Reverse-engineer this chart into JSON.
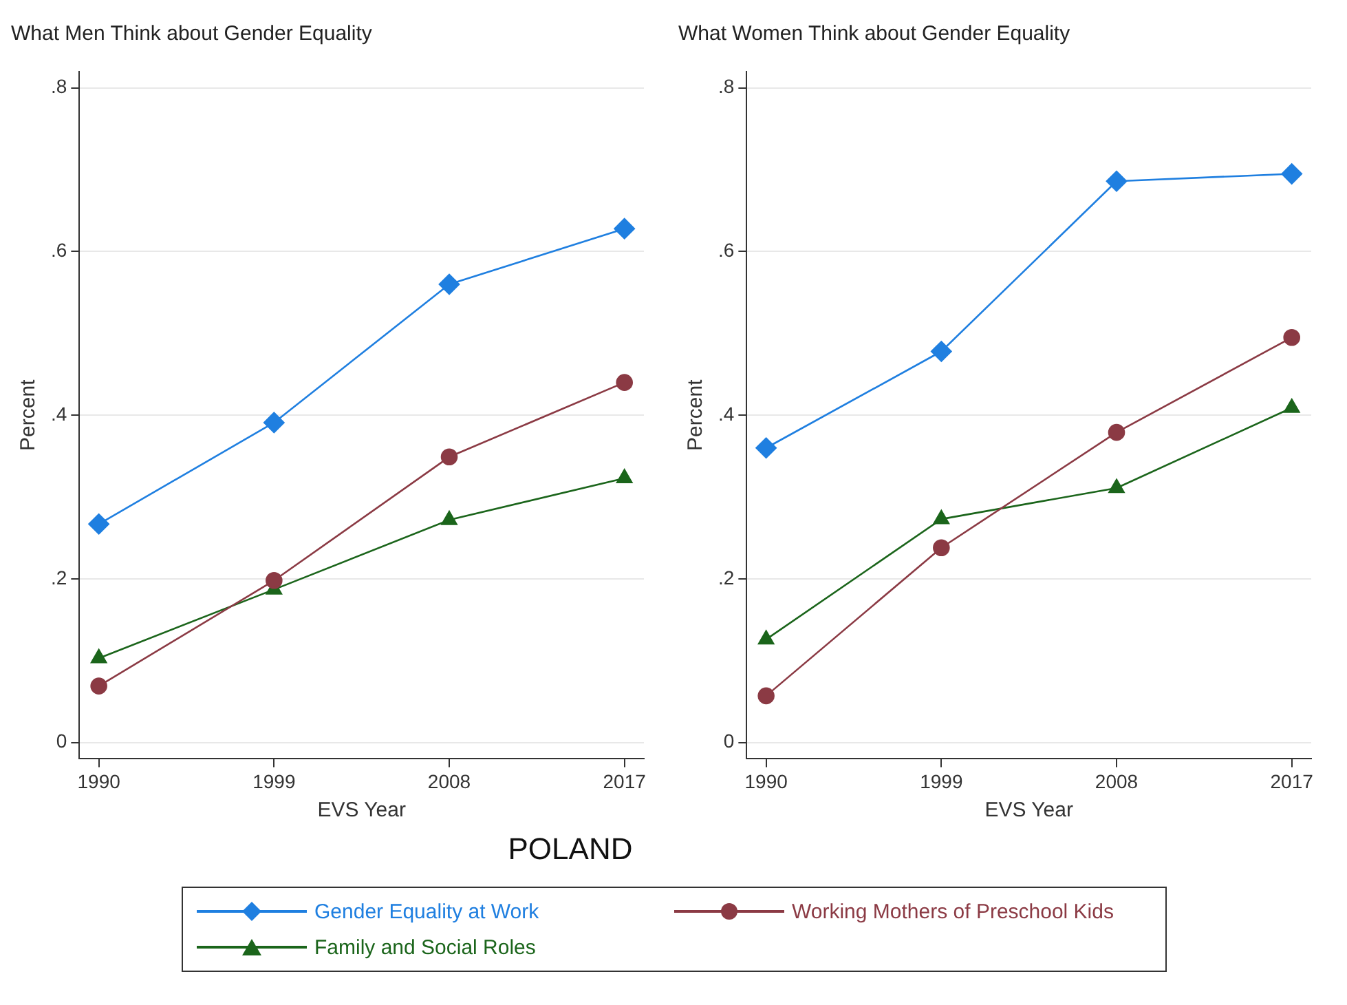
{
  "chart_data": [
    {
      "type": "line",
      "title": "What Men Think about Gender Equality",
      "xlabel": "EVS Year",
      "ylabel": "Percent",
      "x": [
        1990,
        1999,
        2008,
        2017
      ],
      "xlim": [
        1989,
        2018
      ],
      "xticks": [
        1990,
        1999,
        2008,
        2017
      ],
      "ylim": [
        -0.02,
        0.82
      ],
      "yticks": [
        {
          "value": 0,
          "label": "0"
        },
        {
          "value": 0.2,
          "label": ".2"
        },
        {
          "value": 0.4,
          "label": ".4"
        },
        {
          "value": 0.6,
          "label": ".6"
        },
        {
          "value": 0.8,
          "label": ".8"
        }
      ],
      "grid": "y",
      "legend": "bottom",
      "annotations": [
        "POLAND"
      ],
      "series": [
        {
          "name": "Gender Equality at Work",
          "color": "#1f7fe0",
          "marker": "diamond",
          "values": [
            0.267,
            0.391,
            0.56,
            0.628
          ]
        },
        {
          "name": "Working Mothers of Preschool Kids",
          "color": "#8b3a44",
          "marker": "circle",
          "values": [
            0.069,
            0.198,
            0.349,
            0.44
          ]
        },
        {
          "name": "Family and Social Roles",
          "color": "#1b651b",
          "marker": "triangle",
          "values": [
            0.103,
            0.187,
            0.272,
            0.323
          ]
        }
      ]
    },
    {
      "type": "line",
      "title": "What Women Think about Gender Equality",
      "xlabel": "EVS Year",
      "ylabel": "Percent",
      "x": [
        1990,
        1999,
        2008,
        2017
      ],
      "xlim": [
        1989,
        2018
      ],
      "xticks": [
        1990,
        1999,
        2008,
        2017
      ],
      "ylim": [
        -0.02,
        0.82
      ],
      "yticks": [
        {
          "value": 0,
          "label": "0"
        },
        {
          "value": 0.2,
          "label": ".2"
        },
        {
          "value": 0.4,
          "label": ".4"
        },
        {
          "value": 0.6,
          "label": ".6"
        },
        {
          "value": 0.8,
          "label": ".8"
        }
      ],
      "grid": "y",
      "series": [
        {
          "color": "#1f7fe0",
          "marker": "diamond",
          "values": [
            0.36,
            0.478,
            0.686,
            0.695
          ]
        },
        {
          "color": "#8b3a44",
          "marker": "circle",
          "values": [
            0.057,
            0.238,
            0.379,
            0.495
          ]
        },
        {
          "color": "#1b651b",
          "marker": "triangle",
          "values": [
            0.126,
            0.273,
            0.311,
            0.409
          ]
        }
      ]
    }
  ]
}
